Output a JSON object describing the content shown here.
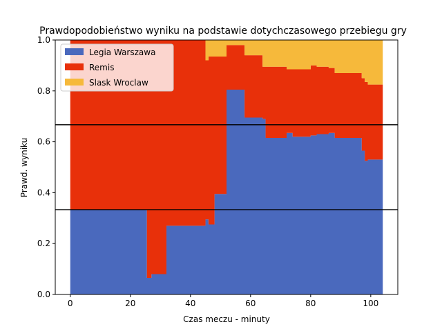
{
  "chart_data": {
    "type": "area",
    "title": "Prawdopodobieństwo wyniku na podstawie dotychczasowego przebiegu gry",
    "xlabel": "Czas meczu - minuty",
    "ylabel": "Prawd. wyniku",
    "xlim": [
      -5,
      109
    ],
    "ylim": [
      0,
      1
    ],
    "xticks": [
      0,
      20,
      40,
      60,
      80,
      100
    ],
    "yticks": [
      0.0,
      0.2,
      0.4,
      0.6,
      0.8,
      1.0
    ],
    "ytick_labels": [
      "0.0",
      "0.2",
      "0.4",
      "0.6",
      "0.8",
      "1.0"
    ],
    "grid": false,
    "legend": "top-left",
    "stacked": true,
    "step": "post",
    "hlines": [
      0.333,
      0.667
    ],
    "x": [
      0,
      25.5,
      27,
      28,
      32,
      45,
      46,
      48,
      52,
      56,
      58,
      62,
      64,
      65,
      71,
      72,
      74,
      80,
      82,
      86,
      88,
      90,
      96,
      97,
      98,
      99,
      104
    ],
    "series": [
      {
        "name": "Legia Warszawa",
        "color": "#4a69bd",
        "values": [
          0.333,
          0.065,
          0.08,
          0.08,
          0.27,
          0.295,
          0.275,
          0.395,
          0.805,
          0.805,
          0.695,
          0.695,
          0.69,
          0.615,
          0.615,
          0.635,
          0.62,
          0.625,
          0.63,
          0.635,
          0.615,
          0.615,
          0.615,
          0.565,
          0.525,
          0.53,
          0.53
        ]
      },
      {
        "name": "Remis",
        "color": "#e8300a",
        "values": [
          0.667,
          0.935,
          0.92,
          0.92,
          0.73,
          0.625,
          0.66,
          0.54,
          0.175,
          0.175,
          0.245,
          0.245,
          0.205,
          0.28,
          0.28,
          0.25,
          0.265,
          0.275,
          0.265,
          0.255,
          0.255,
          0.255,
          0.255,
          0.285,
          0.31,
          0.295,
          0.295
        ]
      },
      {
        "name": "Slask Wroclaw",
        "color": "#f6b93b",
        "values": [
          0.0,
          0.0,
          0.0,
          0.0,
          0.0,
          0.08,
          0.065,
          0.065,
          0.02,
          0.02,
          0.06,
          0.06,
          0.105,
          0.105,
          0.105,
          0.115,
          0.115,
          0.1,
          0.105,
          0.11,
          0.13,
          0.13,
          0.13,
          0.15,
          0.165,
          0.175,
          0.175
        ]
      }
    ]
  }
}
